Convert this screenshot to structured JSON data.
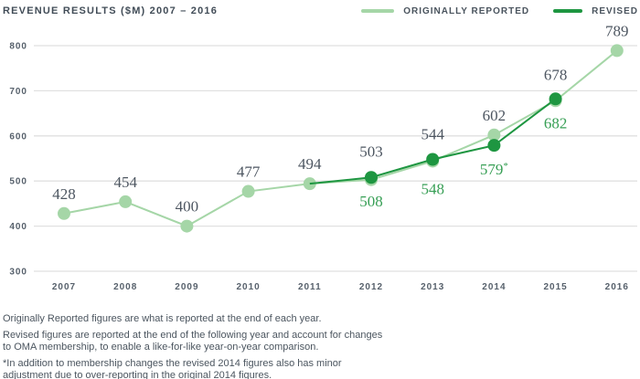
{
  "header": {
    "title": "REVENUE RESULTS ($M) 2007 – 2016"
  },
  "legend": {
    "originally_reported": "ORIGINALLY REPORTED",
    "revised": "REVISED"
  },
  "colors": {
    "light_green": "#a5d6a7",
    "dark_green": "#1e9641",
    "green_label": "#379f55",
    "dark_label": "#4d5661",
    "axis_text": "#57616c",
    "gridline": "#e1e1e1"
  },
  "chart_data": {
    "type": "line",
    "title": "REVENUE RESULTS ($M) 2007 – 2016",
    "categories": [
      "2007",
      "2008",
      "2009",
      "2010",
      "2011",
      "2012",
      "2013",
      "2014",
      "2015",
      "2016"
    ],
    "series": [
      {
        "name": "ORIGINALLY REPORTED",
        "values": [
          428,
          454,
          400,
          477,
          494,
          503,
          544,
          602,
          678,
          789
        ],
        "labels": [
          "428",
          "454",
          "400",
          "477",
          "494",
          "503",
          "544",
          "602",
          "678",
          "789"
        ]
      },
      {
        "name": "REVISED",
        "values": [
          null,
          null,
          null,
          null,
          null,
          508,
          548,
          579,
          682,
          null
        ],
        "labels": [
          null,
          null,
          null,
          null,
          null,
          "508",
          "548",
          "579*",
          "682",
          null
        ]
      }
    ],
    "xlabel": "",
    "ylabel": "",
    "ylim": [
      300,
      800
    ],
    "yticks": [
      300,
      400,
      500,
      600,
      700,
      800
    ],
    "grid": "horizontal",
    "legend_position": "top-right"
  },
  "footnotes": [
    "Originally Reported figures are what is reported at the end of each year.",
    "Revised figures are reported at the end of the following year and account for changes\nto OMA membership, to enable a like-for-like year-on-year comparison.",
    "*In addition to membership changes the revised 2014 figures also has minor\nadjustment due to over-reporting in the original 2014 figures."
  ]
}
